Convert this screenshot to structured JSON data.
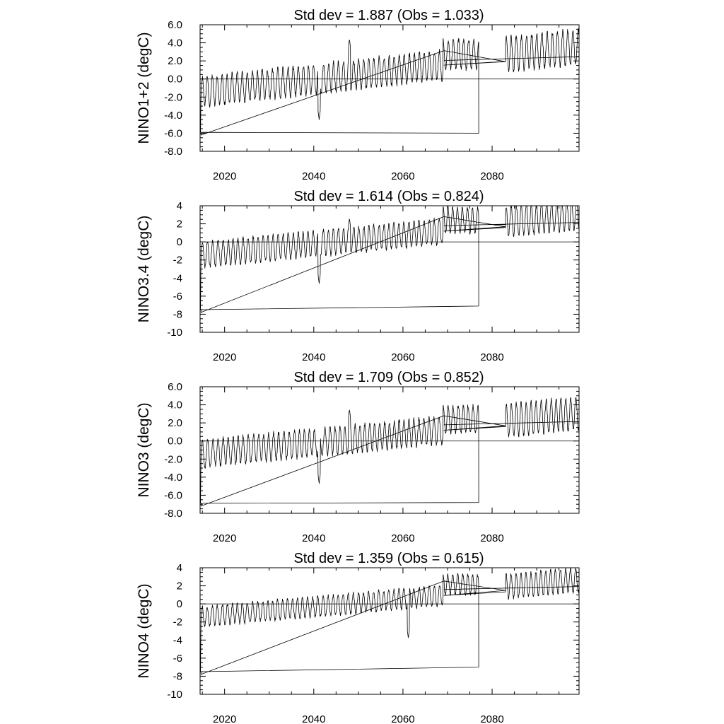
{
  "chart_data": [
    {
      "type": "line",
      "index": "nino12",
      "title": "Std dev = 1.887 (Obs = 1.033)",
      "ylabel": "NINO1+2 (degC)",
      "xlim": [
        2014.5,
        2099.5
      ],
      "ylim": [
        -8,
        6
      ],
      "yticks": [
        6,
        4,
        2,
        0,
        -2,
        -4,
        -6,
        -8
      ],
      "ytick_labels": [
        "6.0",
        "4.0",
        "2.0",
        "0.0",
        "-2.0",
        "-4.0",
        "-6.0",
        "-8.0"
      ],
      "xticks": [
        2020,
        2040,
        2060,
        2080
      ],
      "xtick_labels": [
        "2020",
        "2040",
        "2060",
        "2080"
      ],
      "reference_line": 0,
      "series_params": {
        "baseline": -5.9,
        "trend": 0.034,
        "amplitude": 1.6,
        "var_amp": 0.5,
        "seed": 11,
        "segment_end": 2077,
        "segment_end_value": -6.0,
        "spike": 2048.0,
        "spike_val": 4.4,
        "dip": 2041.2,
        "dip_val": -4.5
      }
    },
    {
      "type": "line",
      "index": "nino34",
      "title": "Std dev = 1.614 (Obs = 0.824)",
      "ylabel": "NINO3.4 (degC)",
      "xlim": [
        2014.5,
        2099.5
      ],
      "ylim": [
        -10,
        4
      ],
      "yticks": [
        4,
        2,
        0,
        -2,
        -4,
        -6,
        -8,
        -10
      ],
      "ytick_labels": [
        "4",
        "2",
        "0",
        "-2",
        "-4",
        "-6",
        "-8",
        "-10"
      ],
      "xticks": [
        2020,
        2040,
        2060,
        2080
      ],
      "xtick_labels": [
        "2020",
        "2040",
        "2060",
        "2080"
      ],
      "reference_line": 0,
      "series_params": {
        "baseline": -7.5,
        "trend": 0.03,
        "amplitude": 1.4,
        "var_amp": 0.4,
        "seed": 23,
        "segment_end": 2077,
        "segment_end_value": -7.1,
        "spike": 2048.0,
        "spike_val": 2.6,
        "dip": 2041.2,
        "dip_val": -4.6
      }
    },
    {
      "type": "line",
      "index": "nino3",
      "title": "Std dev = 1.709 (Obs = 0.852)",
      "ylabel": "NINO3 (degC)",
      "xlim": [
        2014.5,
        2099.5
      ],
      "ylim": [
        -8,
        6
      ],
      "yticks": [
        6,
        4,
        2,
        0,
        -2,
        -4,
        -6,
        -8
      ],
      "ytick_labels": [
        "6.0",
        "4.0",
        "2.0",
        "0.0",
        "-2.0",
        "-4.0",
        "-6.0",
        "-8.0"
      ],
      "xticks": [
        2020,
        2040,
        2060,
        2080
      ],
      "xtick_labels": [
        "2020",
        "2040",
        "2060",
        "2080"
      ],
      "reference_line": 0,
      "series_params": {
        "baseline": -6.9,
        "trend": 0.03,
        "amplitude": 1.5,
        "var_amp": 0.45,
        "seed": 37,
        "segment_end": 2077,
        "segment_end_value": -6.8,
        "spike": 2048.0,
        "spike_val": 3.5,
        "dip": 2041.2,
        "dip_val": -4.7
      }
    },
    {
      "type": "line",
      "index": "nino4",
      "title": "Std dev = 1.359 (Obs = 0.615)",
      "ylabel": "NINO4 (degC)",
      "xlim": [
        2014.5,
        2099.5
      ],
      "ylim": [
        -10,
        4
      ],
      "yticks": [
        4,
        2,
        0,
        -2,
        -4,
        -6,
        -8,
        -10
      ],
      "ytick_labels": [
        "4",
        "2",
        "0",
        "-2",
        "-4",
        "-6",
        "-8",
        "-10"
      ],
      "xticks": [
        2020,
        2040,
        2060,
        2080
      ],
      "xtick_labels": [
        "2020",
        "2040",
        "2060",
        "2080"
      ],
      "reference_line": 0,
      "series_params": {
        "baseline": -7.5,
        "trend": 0.027,
        "amplitude": 1.1,
        "var_amp": 0.35,
        "seed": 53,
        "segment_end": 2077,
        "segment_end_value": -7.0,
        "spike": 2061.5,
        "spike_val": 1.8,
        "dip": 2061.2,
        "dip_val": -3.8
      }
    }
  ]
}
